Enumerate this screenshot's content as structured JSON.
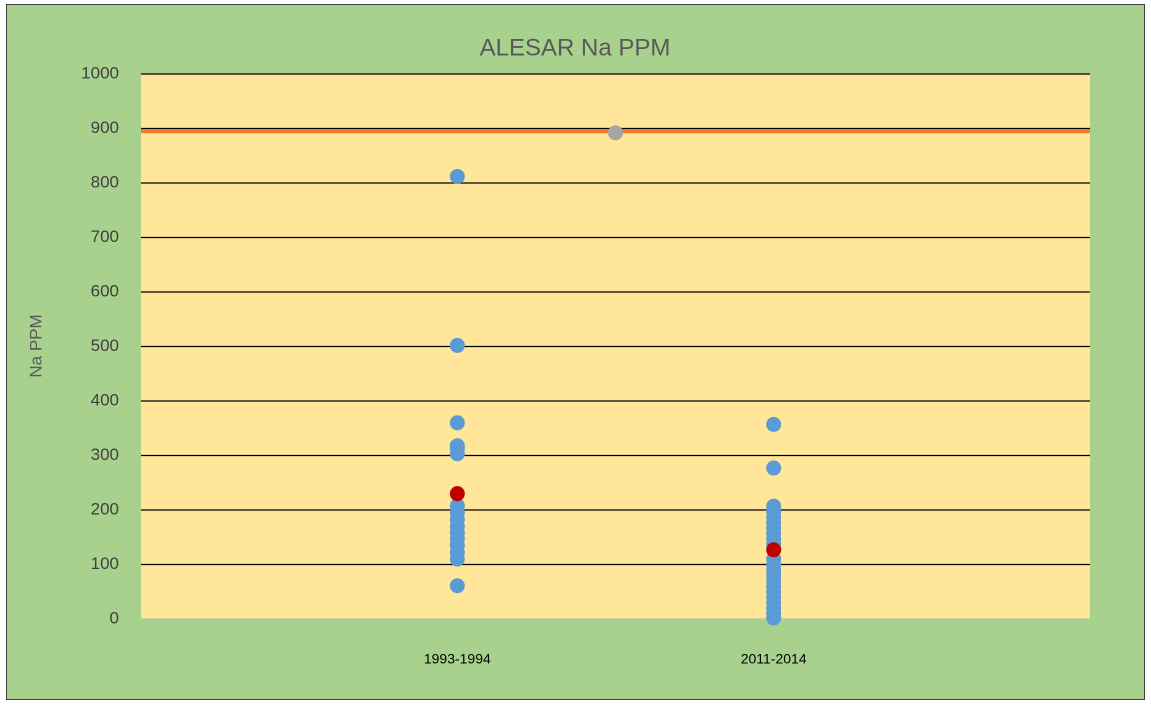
{
  "chart_data": {
    "type": "scatter",
    "title": "ALESAR Na PPM",
    "y_label": "Na PPM",
    "xlim": [
      0,
      3
    ],
    "xticks": [
      {
        "value": 1,
        "label": "1993-1994"
      },
      {
        "value": 2,
        "label": "2011-2014"
      }
    ],
    "ylim": [
      0,
      1000
    ],
    "yticks": [
      0,
      100,
      200,
      300,
      400,
      500,
      600,
      700,
      800,
      900,
      1000
    ],
    "grid": true,
    "series": [
      {
        "color": "#ed7d31",
        "mode": "line",
        "x": [
          0,
          3
        ],
        "values": [
          895,
          895
        ]
      },
      {
        "color": "#a5a5a5",
        "mode": "markers",
        "x": [
          1.5
        ],
        "values": [
          892
        ]
      },
      {
        "color": "#5b9bd5",
        "mode": "markers",
        "x": [
          1,
          1,
          1,
          1,
          1,
          1,
          1,
          1,
          1,
          1,
          1,
          1,
          1,
          1,
          1,
          1,
          2,
          2,
          2,
          2,
          2,
          2,
          2,
          2,
          2,
          2,
          2,
          2,
          2,
          2,
          2,
          2,
          2,
          2,
          2,
          2,
          2,
          2
        ],
        "values": [
          812,
          502,
          360,
          318,
          313,
          303,
          208,
          195,
          182,
          170,
          158,
          147,
          135,
          122,
          110,
          61,
          357,
          277,
          207,
          197,
          187,
          177,
          167,
          157,
          147,
          137,
          110,
          100,
          90,
          80,
          70,
          60,
          50,
          40,
          30,
          20,
          10,
          2
        ]
      },
      {
        "color": "#c00000",
        "mode": "markers",
        "x": [
          1,
          2
        ],
        "values": [
          230,
          127
        ]
      }
    ]
  }
}
